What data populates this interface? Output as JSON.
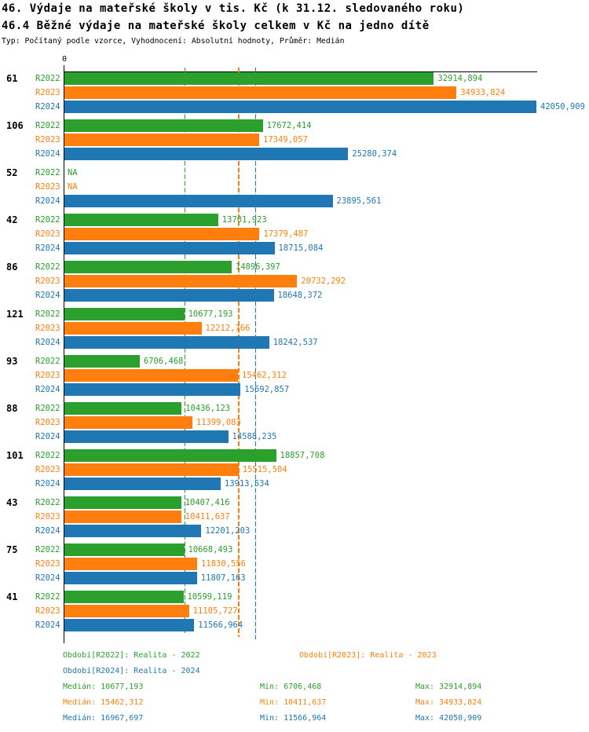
{
  "title": "46. Výdaje na mateřské školy v tis. Kč (k 31.12. sledovaného roku)",
  "subtitle": "46.4 Běžné výdaje na mateřské školy celkem v Kč na jedno dítě",
  "meta": "Typ: Počítaný podle vzorce, Vyhodnocení: Absolutní hodnoty, Průměr: Medián",
  "axis": {
    "origin_label": "0"
  },
  "colors": {
    "r2022": "#2ca02c",
    "r2023": "#ff7f0e",
    "r2024": "#1f77b4",
    "axis": "#000000",
    "background": "#ffffff"
  },
  "chart_data": {
    "type": "bar",
    "orientation": "horizontal",
    "xlim": [
      0,
      42050.909
    ],
    "grid": false,
    "categories": [
      "61",
      "106",
      "52",
      "42",
      "86",
      "121",
      "93",
      "88",
      "101",
      "43",
      "75",
      "41"
    ],
    "series": [
      {
        "name": "R2022",
        "color": "#2ca02c",
        "values": [
          32914.894,
          17672.414,
          null,
          13701.923,
          14896.397,
          10677.193,
          6706.468,
          10436.123,
          18857.708,
          10407.416,
          10668.493,
          10599.119
        ],
        "labels": [
          "32914,894",
          "17672,414",
          "NA",
          "13701,923",
          "14896,397",
          "10677,193",
          "6706,468",
          "10436,123",
          "18857,708",
          "10407,416",
          "10668,493",
          "10599,119"
        ]
      },
      {
        "name": "R2023",
        "color": "#ff7f0e",
        "values": [
          34933.824,
          17349.057,
          null,
          17379.487,
          20732.292,
          12212.766,
          15462.312,
          11399.083,
          15515.504,
          10411.637,
          11830.556,
          11105.727
        ],
        "labels": [
          "34933,824",
          "17349,057",
          "NA",
          "17379,487",
          "20732,292",
          "12212,766",
          "15462,312",
          "11399,083",
          "15515,504",
          "10411,637",
          "11830,556",
          "11105,727"
        ]
      },
      {
        "name": "R2024",
        "color": "#1f77b4",
        "values": [
          42050.909,
          25280.374,
          23895.561,
          18715.084,
          18648.372,
          18242.537,
          15692.857,
          14588.235,
          13913.534,
          12201.203,
          11807.163,
          11566.964
        ],
        "labels": [
          "42050,909",
          "25280,374",
          "23895,561",
          "18715,084",
          "18648,372",
          "18242,537",
          "15692,857",
          "14588,235",
          "13913,534",
          "12201,203",
          "11807,163",
          "11566,964"
        ]
      }
    ],
    "median_lines": [
      {
        "series": "R2022",
        "value": 10677.193,
        "color": "#2ca02c"
      },
      {
        "series": "R2023",
        "value": 15462.312,
        "color": "#ff7f0e"
      },
      {
        "series": "R2024",
        "value": 16967.697,
        "color": "#1f77b4"
      }
    ]
  },
  "legend": {
    "periods": [
      {
        "label": "Období[R2022]: Realita - 2022",
        "color": "#2ca02c"
      },
      {
        "label": "Období[R2023]: Realita - 2023",
        "color": "#ff7f0e"
      },
      {
        "label": "Období[R2024]: Realita - 2024",
        "color": "#1f77b4"
      }
    ],
    "stats": [
      {
        "median": "Medián: 10677,193",
        "min": "Min: 6706,468",
        "max": "Max: 32914,894",
        "color": "#2ca02c"
      },
      {
        "median": "Medián: 15462,312",
        "min": "Min: 10411,637",
        "max": "Max: 34933,824",
        "color": "#ff7f0e"
      },
      {
        "median": "Medián: 16967,697",
        "min": "Min: 11566,964",
        "max": "Max: 42050,909",
        "color": "#1f77b4"
      }
    ]
  }
}
